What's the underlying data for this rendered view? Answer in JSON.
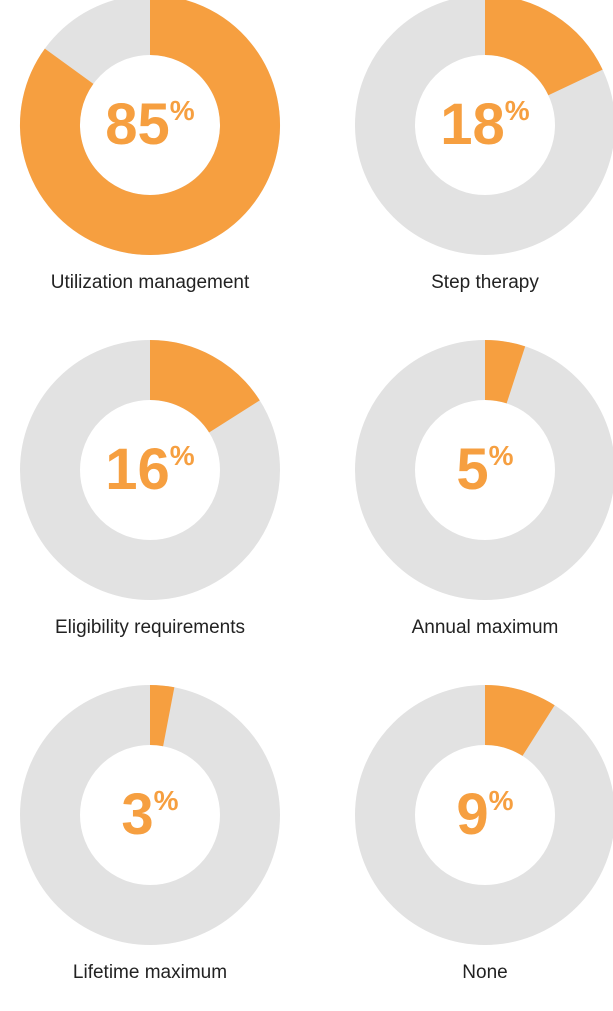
{
  "chart_data": [
    {
      "type": "donut",
      "title": "Utilization management",
      "values": [
        85
      ],
      "unit": "%",
      "color": "#f69f40",
      "track_color": "#e2e2e2"
    },
    {
      "type": "donut",
      "title": "Step therapy",
      "values": [
        18
      ],
      "unit": "%",
      "color": "#f69f40",
      "track_color": "#e2e2e2"
    },
    {
      "type": "donut",
      "title": "Eligibility requirements",
      "values": [
        16
      ],
      "unit": "%",
      "color": "#f69f40",
      "track_color": "#e2e2e2"
    },
    {
      "type": "donut",
      "title": "Annual maximum",
      "values": [
        5
      ],
      "unit": "%",
      "color": "#f69f40",
      "track_color": "#e2e2e2"
    },
    {
      "type": "donut",
      "title": "Lifetime maximum",
      "values": [
        3
      ],
      "unit": "%",
      "color": "#f69f40",
      "track_color": "#e2e2e2"
    },
    {
      "type": "donut",
      "title": "None",
      "values": [
        9
      ],
      "unit": "%",
      "color": "#f69f40",
      "track_color": "#e2e2e2"
    }
  ]
}
